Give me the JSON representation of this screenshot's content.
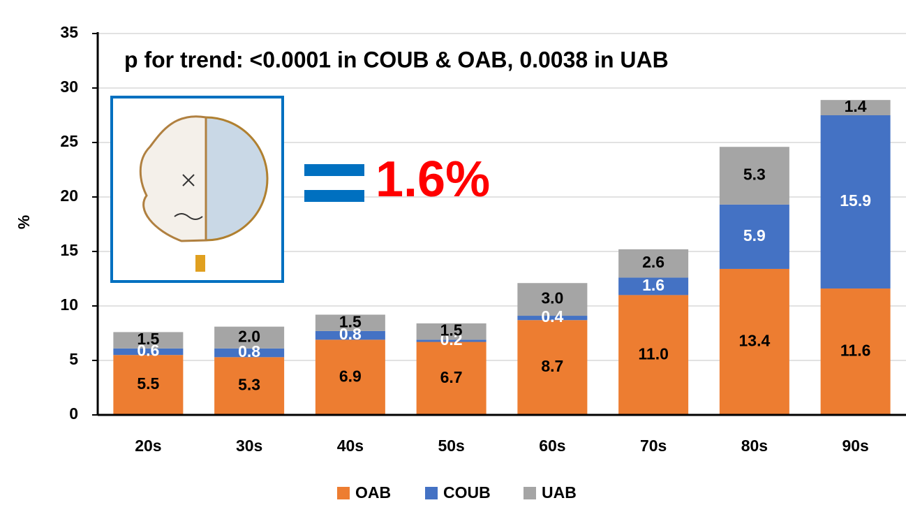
{
  "chart_data": {
    "type": "stacked_bar",
    "annotations": [
      "p for trend: <0.0001 in COUB & OAB, 0.0038 in UAB",
      "1.6%"
    ],
    "y_label": "%",
    "categories": [
      "20s",
      "30s",
      "40s",
      "50s",
      "60s",
      "70s",
      "80s",
      "90s"
    ],
    "series": [
      {
        "name": "OAB",
        "color": "#ed7d31",
        "label_color": "#000000",
        "values": [
          5.5,
          5.3,
          6.9,
          6.7,
          8.7,
          11.0,
          13.4,
          11.6
        ],
        "value_labels": [
          "5.5",
          "5.3",
          "6.9",
          "6.7",
          "8.7",
          "11.0",
          "13.4",
          "11.6"
        ]
      },
      {
        "name": "COUB",
        "color": "#4472c4",
        "label_color": "#ffffff",
        "values": [
          0.6,
          0.8,
          0.8,
          0.2,
          0.4,
          1.6,
          5.9,
          15.9
        ],
        "value_labels": [
          "0.6",
          "0.8",
          "0.8",
          "0.2",
          "0.4",
          "1.6",
          "5.9",
          "15.9"
        ]
      },
      {
        "name": "UAB",
        "color": "#a5a5a5",
        "label_color": "#000000",
        "values": [
          1.5,
          2.0,
          1.5,
          1.5,
          3.0,
          2.6,
          5.3,
          1.4
        ],
        "value_labels": [
          "1.5",
          "2.0",
          "1.5",
          "1.5",
          "3.0",
          "2.6",
          "5.3",
          "1.4"
        ]
      }
    ],
    "ylim": [
      0,
      35
    ],
    "yticks": [
      0,
      5,
      10,
      15,
      20,
      25,
      30,
      35
    ],
    "grid": true,
    "legend": "bottom"
  }
}
